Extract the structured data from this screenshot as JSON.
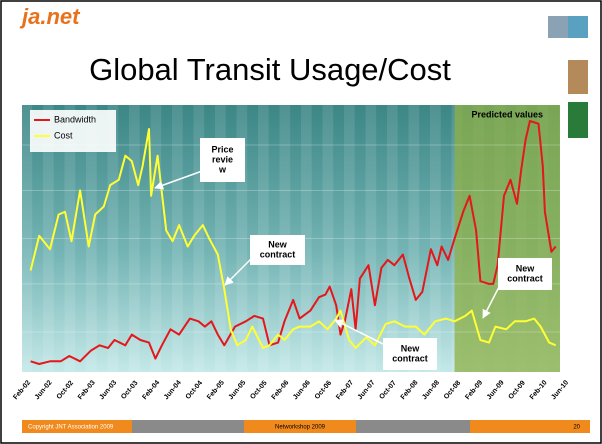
{
  "header": {
    "logo": "ja.net",
    "title": "Global Transit Usage/Cost"
  },
  "chart_data": {
    "type": "line",
    "categories": [
      "Feb-02",
      "Jun-02",
      "Oct-02",
      "Feb-03",
      "Jun-03",
      "Oct-03",
      "Feb-04",
      "Jun-04",
      "Oct-04",
      "Feb-05",
      "Jun-05",
      "Oct-05",
      "Feb-06",
      "Jun-06",
      "Oct-06",
      "Feb-07",
      "Jun-07",
      "Oct-07",
      "Feb-08",
      "Jun-08",
      "Oct-08",
      "Feb-09",
      "Jun-09",
      "Oct-09",
      "Feb-10",
      "Jun-10"
    ],
    "xlim": [
      0,
      25
    ],
    "ylim": [
      0,
      100
    ],
    "predicted": {
      "label": "Predicted values",
      "from": 20.1
    },
    "annotations": [
      {
        "lines": [
          "Price",
          "revie",
          "w"
        ]
      },
      {
        "lines": [
          "New",
          "contract"
        ]
      },
      {
        "lines": [
          "New",
          "contract"
        ]
      },
      {
        "lines": [
          "New",
          "contract"
        ]
      }
    ],
    "series": [
      {
        "name": "Bandwidth",
        "color": "#e4171b",
        "x": [
          0.4,
          0.8,
          1.3,
          1.8,
          2.2,
          2.7,
          3.2,
          3.6,
          4.0,
          4.3,
          4.8,
          5.1,
          5.5,
          5.9,
          6.2,
          6.5,
          6.9,
          7.3,
          7.8,
          8.2,
          8.5,
          8.8,
          9.1,
          9.4,
          9.9,
          10.4,
          10.8,
          11.2,
          11.5,
          11.9,
          12.2,
          12.6,
          12.9,
          13.4,
          13.8,
          14.1,
          14.3,
          14.6,
          14.8,
          15.0,
          15.3,
          15.5,
          15.7,
          16.1,
          16.4,
          16.7,
          17.0,
          17.3,
          17.7,
          18.0,
          18.3,
          18.6,
          19.0,
          19.3,
          19.5,
          19.8,
          20.1,
          20.5,
          20.8,
          21.1,
          21.3,
          21.7,
          21.9,
          22.1,
          22.4,
          22.7,
          23.0,
          23.2,
          23.4,
          23.6,
          24.0,
          24.2,
          24.3,
          24.6,
          24.8
        ],
        "values": [
          4,
          3,
          4,
          4,
          6,
          4,
          8,
          10,
          9,
          12,
          10,
          14,
          12,
          11,
          5,
          10,
          16,
          14,
          20,
          19,
          17,
          19,
          14,
          10,
          17,
          19,
          21,
          20,
          10,
          11,
          19,
          27,
          20,
          23,
          28,
          29,
          32,
          25,
          14,
          19,
          31,
          16,
          35,
          40,
          25,
          39,
          42,
          40,
          44,
          35,
          27,
          30,
          46,
          40,
          47,
          42,
          50,
          60,
          66,
          53,
          34,
          33,
          33,
          40,
          66,
          72,
          63,
          76,
          87,
          94,
          93,
          77,
          60,
          45,
          47
        ]
      },
      {
        "name": "Cost",
        "color": "#ffff33",
        "x": [
          0.4,
          0.8,
          1.3,
          1.7,
          2.0,
          2.3,
          2.7,
          3.1,
          3.4,
          3.8,
          4.1,
          4.5,
          4.8,
          5.1,
          5.4,
          5.6,
          5.9,
          6.0,
          6.3,
          6.7,
          7.0,
          7.3,
          7.7,
          8.0,
          8.4,
          8.7,
          9.1,
          9.4,
          9.7,
          10.0,
          10.4,
          10.7,
          11.2,
          11.5,
          11.9,
          12.2,
          12.6,
          12.9,
          13.4,
          13.8,
          14.2,
          14.6,
          14.8,
          15.2,
          15.5,
          16.0,
          16.4,
          16.9,
          17.3,
          17.8,
          18.3,
          18.7,
          19.2,
          19.7,
          20.1,
          20.6,
          20.9,
          21.3,
          21.7,
          22.0,
          22.5,
          22.9,
          23.4,
          23.8,
          24.1,
          24.5,
          24.8
        ],
        "values": [
          38,
          51,
          46,
          59,
          60,
          49,
          68,
          47,
          59,
          62,
          70,
          72,
          81,
          79,
          70,
          77,
          91,
          66,
          81,
          53,
          49,
          55,
          47,
          51,
          55,
          50,
          44,
          31,
          16,
          10,
          12,
          17,
          9,
          10,
          14,
          12,
          16,
          17,
          17,
          19,
          16,
          20,
          23,
          12,
          9,
          13,
          10,
          18,
          19,
          17,
          17,
          14,
          19,
          20,
          19,
          21,
          23,
          12,
          11,
          17,
          16,
          19,
          19,
          20,
          17,
          11,
          10
        ]
      }
    ]
  },
  "footer": {
    "copyright": "Copyright JNT Association 2009",
    "event": "Networkshop 2009",
    "page": "20"
  }
}
